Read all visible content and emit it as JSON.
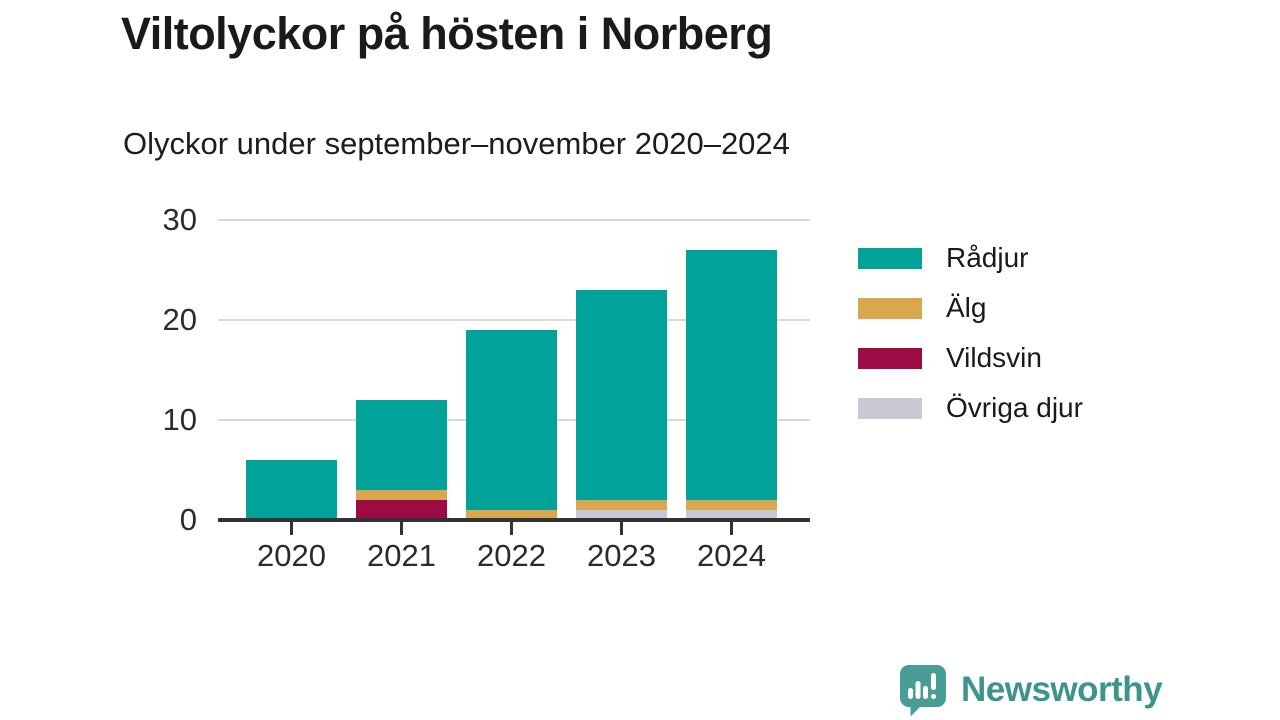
{
  "header": {
    "title": "Viltolyckor på hösten i Norberg",
    "subtitle": "Olyckor under september–november 2020–2024"
  },
  "chart_data": {
    "type": "bar",
    "stacked": true,
    "title": "Viltolyckor på hösten i Norberg",
    "subtitle": "Olyckor under september–november 2020–2024",
    "categories": [
      "2020",
      "2021",
      "2022",
      "2023",
      "2024"
    ],
    "series": [
      {
        "name": "Rådjur",
        "color": "#00a29a",
        "values": [
          6,
          9,
          18,
          21,
          25
        ]
      },
      {
        "name": "Älg",
        "color": "#d9a84e",
        "values": [
          0,
          1,
          1,
          1,
          1
        ]
      },
      {
        "name": "Vildsvin",
        "color": "#9d0b45",
        "values": [
          0,
          2,
          0,
          0,
          0
        ]
      },
      {
        "name": "Övriga djur",
        "color": "#c9c9d5",
        "values": [
          0,
          0,
          0,
          1,
          1
        ]
      }
    ],
    "stack_order_bottom_to_top": [
      "Övriga djur",
      "Vildsvin",
      "Älg",
      "Rådjur"
    ],
    "totals": [
      6,
      12,
      19,
      23,
      27
    ],
    "xlabel": "",
    "ylabel": "",
    "y_ticks": [
      0,
      10,
      20,
      30
    ],
    "ylim": [
      0,
      30
    ],
    "grid": true,
    "legend_position": "right"
  },
  "legend": {
    "items": [
      {
        "label": "Rådjur",
        "color": "#00a29a"
      },
      {
        "label": "Älg",
        "color": "#d9a84e"
      },
      {
        "label": "Vildsvin",
        "color": "#9d0b45"
      },
      {
        "label": "Övriga djur",
        "color": "#c9c9d5"
      }
    ]
  },
  "footer": {
    "brand": "Newsworthy",
    "brand_color": "#3d948e",
    "logo_color": "#4a9d96"
  }
}
